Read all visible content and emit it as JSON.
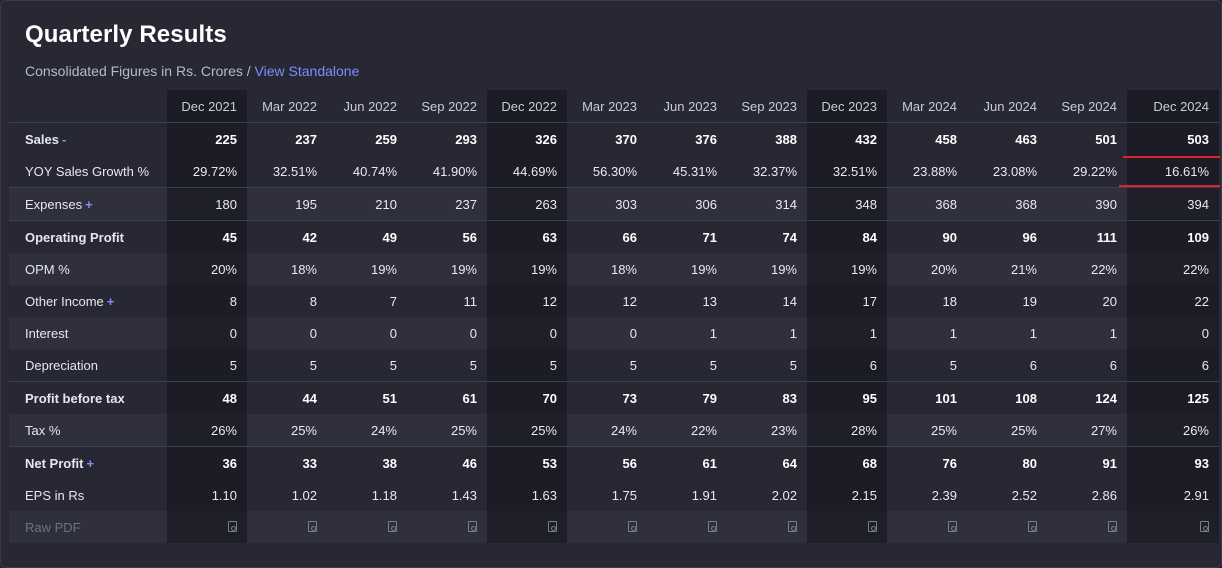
{
  "header": {
    "title": "Quarterly Results",
    "subtitle_prefix": "Consolidated Figures in Rs. Crores / ",
    "standalone_link": "View Standalone"
  },
  "columns": [
    "Dec 2021",
    "Mar 2022",
    "Jun 2022",
    "Sep 2022",
    "Dec 2022",
    "Mar 2023",
    "Jun 2023",
    "Sep 2023",
    "Dec 2023",
    "Mar 2024",
    "Jun 2024",
    "Sep 2024",
    "Dec 2024"
  ],
  "rows": [
    {
      "label": "Sales",
      "toggle": "-",
      "values": [
        "225",
        "237",
        "259",
        "293",
        "326",
        "370",
        "376",
        "388",
        "432",
        "458",
        "463",
        "501",
        "503"
      ]
    },
    {
      "label": "YOY Sales Growth %",
      "toggle": "",
      "values": [
        "29.72%",
        "32.51%",
        "40.74%",
        "41.90%",
        "44.69%",
        "56.30%",
        "45.31%",
        "32.37%",
        "32.51%",
        "23.88%",
        "23.08%",
        "29.22%",
        "16.61%"
      ]
    },
    {
      "label": "Expenses",
      "toggle": "+",
      "values": [
        "180",
        "195",
        "210",
        "237",
        "263",
        "303",
        "306",
        "314",
        "348",
        "368",
        "368",
        "390",
        "394"
      ]
    },
    {
      "label": "Operating Profit",
      "toggle": "",
      "values": [
        "45",
        "42",
        "49",
        "56",
        "63",
        "66",
        "71",
        "74",
        "84",
        "90",
        "96",
        "111",
        "109"
      ]
    },
    {
      "label": "OPM %",
      "toggle": "",
      "values": [
        "20%",
        "18%",
        "19%",
        "19%",
        "19%",
        "18%",
        "19%",
        "19%",
        "19%",
        "20%",
        "21%",
        "22%",
        "22%"
      ]
    },
    {
      "label": "Other Income",
      "toggle": "+",
      "values": [
        "8",
        "8",
        "7",
        "11",
        "12",
        "12",
        "13",
        "14",
        "17",
        "18",
        "19",
        "20",
        "22"
      ]
    },
    {
      "label": "Interest",
      "toggle": "",
      "values": [
        "0",
        "0",
        "0",
        "0",
        "0",
        "0",
        "1",
        "1",
        "1",
        "1",
        "1",
        "1",
        "0"
      ]
    },
    {
      "label": "Depreciation",
      "toggle": "",
      "values": [
        "5",
        "5",
        "5",
        "5",
        "5",
        "5",
        "5",
        "5",
        "6",
        "5",
        "6",
        "6",
        "6"
      ]
    },
    {
      "label": "Profit before tax",
      "toggle": "",
      "values": [
        "48",
        "44",
        "51",
        "61",
        "70",
        "73",
        "79",
        "83",
        "95",
        "101",
        "108",
        "124",
        "125"
      ]
    },
    {
      "label": "Tax %",
      "toggle": "",
      "values": [
        "26%",
        "25%",
        "24%",
        "25%",
        "25%",
        "24%",
        "22%",
        "23%",
        "28%",
        "25%",
        "25%",
        "27%",
        "26%"
      ]
    },
    {
      "label": "Net Profit",
      "toggle": "+",
      "values": [
        "36",
        "33",
        "38",
        "46",
        "53",
        "56",
        "61",
        "64",
        "68",
        "76",
        "80",
        "91",
        "93"
      ]
    },
    {
      "label": "EPS in Rs",
      "toggle": "",
      "values": [
        "1.10",
        "1.02",
        "1.18",
        "1.43",
        "1.63",
        "1.75",
        "1.91",
        "2.02",
        "2.15",
        "2.39",
        "2.52",
        "2.86",
        "2.91"
      ]
    }
  ],
  "raw_pdf_label": "Raw PDF",
  "colors": {
    "accent": "#7f8cff",
    "highlight": "#d7262e"
  }
}
